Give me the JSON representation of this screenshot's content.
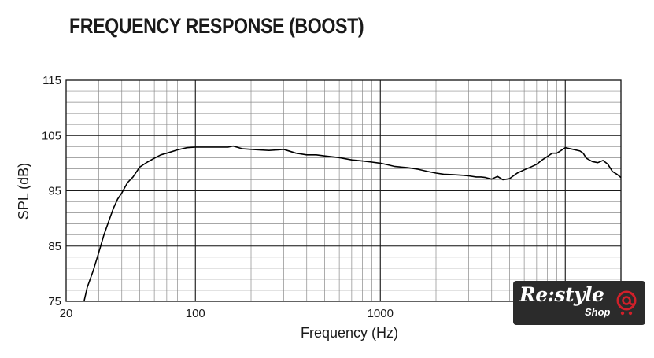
{
  "chart_data": {
    "type": "line",
    "title": "FREQUENCY RESPONSE (BOOST)",
    "xlabel": "Frequency (Hz)",
    "ylabel": "SPL (dB)",
    "xscale": "log",
    "xlim": [
      20,
      20000
    ],
    "ylim": [
      75,
      115
    ],
    "xticks": [
      20,
      100,
      1000
    ],
    "xtick_labels": [
      "20",
      "100",
      "1000"
    ],
    "yticks": [
      75,
      85,
      95,
      105,
      115
    ],
    "ytick_labels": [
      "75",
      "85",
      "95",
      "105",
      "115"
    ],
    "grid": true,
    "series": [
      {
        "color": "#000000",
        "x": [
          25,
          26,
          28,
          30,
          32,
          34,
          36,
          38,
          40,
          43,
          46,
          50,
          55,
          60,
          65,
          70,
          80,
          90,
          100,
          110,
          120,
          130,
          140,
          150,
          160,
          180,
          200,
          220,
          250,
          280,
          300,
          350,
          400,
          450,
          500,
          600,
          700,
          800,
          900,
          1000,
          1100,
          1200,
          1400,
          1600,
          1800,
          2000,
          2200,
          2500,
          2800,
          3000,
          3300,
          3500,
          3700,
          4000,
          4300,
          4600,
          5000,
          5500,
          6000,
          6500,
          7000,
          7500,
          8000,
          8500,
          9000,
          9500,
          10000,
          11000,
          12000,
          12500,
          13000,
          14000,
          15000,
          16000,
          17000,
          18000,
          19000,
          20000
        ],
        "values": [
          75,
          77.5,
          80.5,
          83.8,
          87.0,
          89.5,
          91.8,
          93.5,
          94.6,
          96.5,
          97.5,
          99.3,
          100.2,
          100.9,
          101.5,
          101.8,
          102.4,
          102.8,
          102.9,
          102.9,
          102.9,
          102.9,
          102.9,
          102.9,
          103.1,
          102.6,
          102.5,
          102.4,
          102.3,
          102.4,
          102.5,
          101.8,
          101.5,
          101.5,
          101.3,
          101.0,
          100.6,
          100.4,
          100.2,
          100.0,
          99.7,
          99.4,
          99.2,
          98.9,
          98.5,
          98.2,
          98.0,
          97.9,
          97.8,
          97.7,
          97.5,
          97.5,
          97.4,
          97.1,
          97.6,
          97.0,
          97.2,
          98.2,
          98.8,
          99.3,
          99.8,
          100.6,
          101.2,
          101.8,
          101.8,
          102.3,
          102.8,
          102.5,
          102.2,
          101.8,
          100.9,
          100.3,
          100.1,
          100.5,
          99.8,
          98.5,
          98.0,
          97.4
        ]
      }
    ]
  },
  "watermark": {
    "brand": "Re:style",
    "sub": "Shop"
  }
}
